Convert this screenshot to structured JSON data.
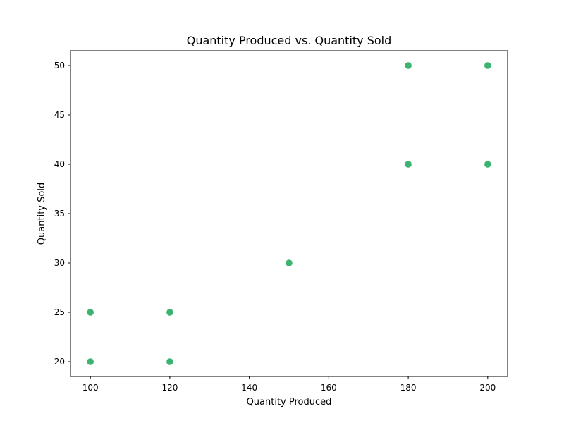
{
  "chart_data": {
    "type": "scatter",
    "title": "Quantity Produced vs. Quantity Sold",
    "xlabel": "Quantity Produced",
    "ylabel": "Quantity Sold",
    "xlim": [
      95,
      205
    ],
    "ylim": [
      18.5,
      51.5
    ],
    "xticks": [
      100,
      120,
      140,
      160,
      180,
      200
    ],
    "yticks": [
      20,
      25,
      30,
      35,
      40,
      45,
      50
    ],
    "grid": false,
    "series": [
      {
        "color": "#3cb371",
        "points": [
          {
            "x": 100,
            "y": 20
          },
          {
            "x": 100,
            "y": 25
          },
          {
            "x": 120,
            "y": 20
          },
          {
            "x": 120,
            "y": 25
          },
          {
            "x": 150,
            "y": 30
          },
          {
            "x": 180,
            "y": 40
          },
          {
            "x": 180,
            "y": 50
          },
          {
            "x": 200,
            "y": 40
          },
          {
            "x": 200,
            "y": 50
          }
        ]
      }
    ]
  }
}
